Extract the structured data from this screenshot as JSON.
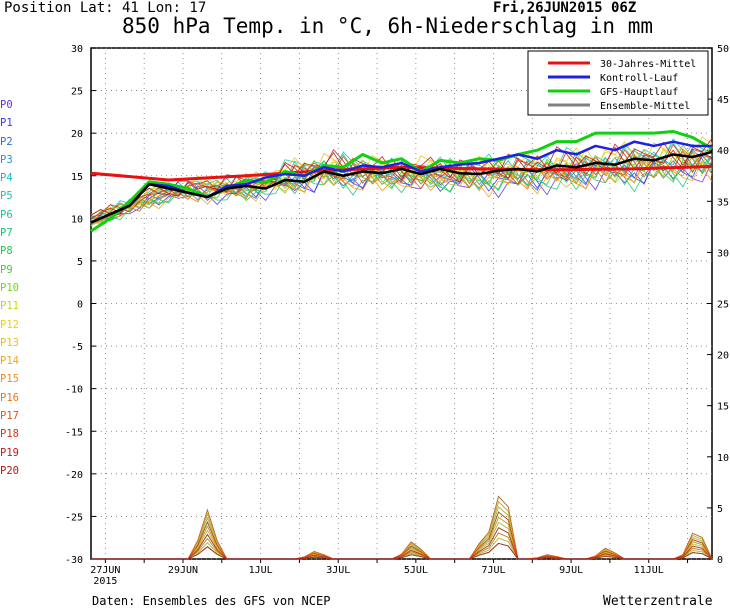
{
  "header": {
    "position": "Position  Lat: 41 Lon: 17",
    "title": "850 hPa Temp. in °C, 6h-Niederschlag in mm",
    "datetime": "Fri,26JUN2015 06Z"
  },
  "footer": {
    "source": "Daten: Ensembles des GFS von NCEP",
    "brand": "Wetterzentrale"
  },
  "members": [
    {
      "label": "P0",
      "color": "#6a2fe0"
    },
    {
      "label": "P1",
      "color": "#3a3ae8"
    },
    {
      "label": "P2",
      "color": "#2a6ae8"
    },
    {
      "label": "P3",
      "color": "#1a9ad8"
    },
    {
      "label": "P4",
      "color": "#18b8c8"
    },
    {
      "label": "P5",
      "color": "#18c8b0"
    },
    {
      "label": "P6",
      "color": "#18c898"
    },
    {
      "label": "P7",
      "color": "#18c878"
    },
    {
      "label": "P8",
      "color": "#20c850"
    },
    {
      "label": "P9",
      "color": "#40d030"
    },
    {
      "label": "P10",
      "color": "#70d818"
    },
    {
      "label": "P11",
      "color": "#c8d818"
    },
    {
      "label": "P12",
      "color": "#e8d018"
    },
    {
      "label": "P13",
      "color": "#f0c018"
    },
    {
      "label": "P14",
      "color": "#f0a818"
    },
    {
      "label": "P15",
      "color": "#f09018"
    },
    {
      "label": "P16",
      "color": "#e87818"
    },
    {
      "label": "P17",
      "color": "#e05818"
    },
    {
      "label": "P18",
      "color": "#d03818"
    },
    {
      "label": "P19",
      "color": "#c02020"
    },
    {
      "label": "P20",
      "color": "#b01818"
    }
  ],
  "chart_data": {
    "type": "line",
    "title": "850 hPa Temp. in °C, 6h-Niederschlag in mm",
    "x_ticks": [
      "27JUN\n2015",
      "29JUN",
      "1JUL",
      "3JUL",
      "5JUL",
      "7JUL",
      "9JUL",
      "11JUL"
    ],
    "x_range_days": [
      0,
      16
    ],
    "ylim_left": [
      -30,
      30
    ],
    "yticks_left": [
      30,
      25,
      20,
      15,
      10,
      5,
      0,
      -5,
      -10,
      -15,
      -20,
      -25,
      -30
    ],
    "ylim_right": [
      0,
      50
    ],
    "yticks_right": [
      50,
      45,
      40,
      35,
      30,
      25,
      20,
      15,
      10,
      5,
      0
    ],
    "grid": true,
    "legend_position": "top-right",
    "legend": [
      {
        "name": "30-Jahres-Mittel",
        "color": "#e81010"
      },
      {
        "name": "Kontroll-Lauf",
        "color": "#2020e0"
      },
      {
        "name": "GFS-Hauptlauf",
        "color": "#10d010"
      },
      {
        "name": "Ensemble-Mittel",
        "color": "#808080"
      }
    ],
    "series": [
      {
        "name": "30-Jahres-Mittel",
        "color": "#e81010",
        "width": 3,
        "x": [
          0,
          2,
          4,
          6,
          8,
          10,
          12,
          14,
          16
        ],
        "y": [
          15.3,
          14.5,
          15.0,
          15.6,
          16.0,
          15.8,
          15.7,
          15.8,
          16.1
        ]
      },
      {
        "name": "GFS-Hauptlauf",
        "color": "#10d010",
        "width": 3,
        "x": [
          0,
          0.5,
          1,
          1.5,
          2,
          2.5,
          3,
          3.5,
          4,
          4.5,
          5,
          5.5,
          6,
          6.5,
          7,
          7.5,
          8,
          8.5,
          9,
          9.5,
          10,
          10.5,
          11,
          11.5,
          12,
          12.5,
          13,
          13.5,
          14,
          14.5,
          15,
          15.5,
          16
        ],
        "y": [
          8.5,
          10,
          12,
          14.3,
          14,
          13.5,
          12.5,
          13.5,
          14.5,
          14.2,
          15.5,
          15,
          16.2,
          16,
          17.5,
          16.5,
          17,
          15.5,
          16.8,
          16.5,
          17,
          16.8,
          17.5,
          18,
          19,
          19,
          20,
          20,
          20,
          20,
          20.2,
          19.5,
          18.2
        ]
      },
      {
        "name": "Kontroll-Lauf",
        "color": "#2020e0",
        "width": 2.5,
        "x": [
          0,
          1,
          1.5,
          2,
          2.5,
          3,
          3.5,
          4,
          4.5,
          5,
          5.5,
          6,
          6.5,
          7,
          7.5,
          8,
          8.5,
          9,
          9.5,
          10,
          10.5,
          11,
          11.5,
          12,
          12.5,
          13,
          13.5,
          14,
          14.5,
          15,
          15.5,
          16
        ],
        "y": [
          9.5,
          11.5,
          14,
          13.8,
          13,
          12.5,
          13.8,
          14,
          14.8,
          15.2,
          15,
          16,
          15.5,
          16.2,
          16,
          16.5,
          15.5,
          16,
          16.3,
          16.5,
          17,
          17.5,
          17,
          18,
          17.5,
          18.5,
          18,
          19,
          18.5,
          19,
          18.5,
          18.5
        ]
      },
      {
        "name": "Ensemble-Mittel",
        "color": "#000000",
        "width": 2.5,
        "x": [
          0,
          0.5,
          1,
          1.5,
          2,
          2.5,
          3,
          3.5,
          4,
          4.5,
          5,
          5.5,
          6,
          6.5,
          7,
          7.5,
          8,
          8.5,
          9,
          9.5,
          10,
          10.5,
          11,
          11.5,
          12,
          12.5,
          13,
          13.5,
          14,
          14.5,
          15,
          15.5,
          16
        ],
        "y": [
          9.5,
          10.5,
          11.5,
          14,
          13.5,
          13,
          12.5,
          13.5,
          13.8,
          13.5,
          14.5,
          14.3,
          15.5,
          15,
          15.5,
          15.3,
          15.8,
          15.2,
          15.8,
          15.3,
          15.2,
          15.6,
          15.8,
          15.5,
          16.2,
          16,
          16.5,
          16.3,
          17,
          16.8,
          17.5,
          17.2,
          17.8
        ]
      }
    ],
    "ensemble_spread": {
      "x": [
        0,
        2,
        4,
        6,
        8,
        10,
        12,
        14,
        16
      ],
      "low": [
        9,
        11.5,
        11.5,
        12,
        12.5,
        12,
        12,
        12.5,
        13
      ],
      "high": [
        10.5,
        15,
        16,
        19.5,
        18,
        18.5,
        19.5,
        20.5,
        21
      ]
    },
    "precip_mm_right_axis": [
      {
        "x": 3,
        "y": 4
      },
      {
        "x": 5.8,
        "y": 0.7
      },
      {
        "x": 8.3,
        "y": 1.6
      },
      {
        "x": 10.2,
        "y": 2.5
      },
      {
        "x": 10.6,
        "y": 6.8
      },
      {
        "x": 11.8,
        "y": 0.4
      },
      {
        "x": 13.3,
        "y": 1.0
      },
      {
        "x": 15.6,
        "y": 2.8
      }
    ]
  }
}
